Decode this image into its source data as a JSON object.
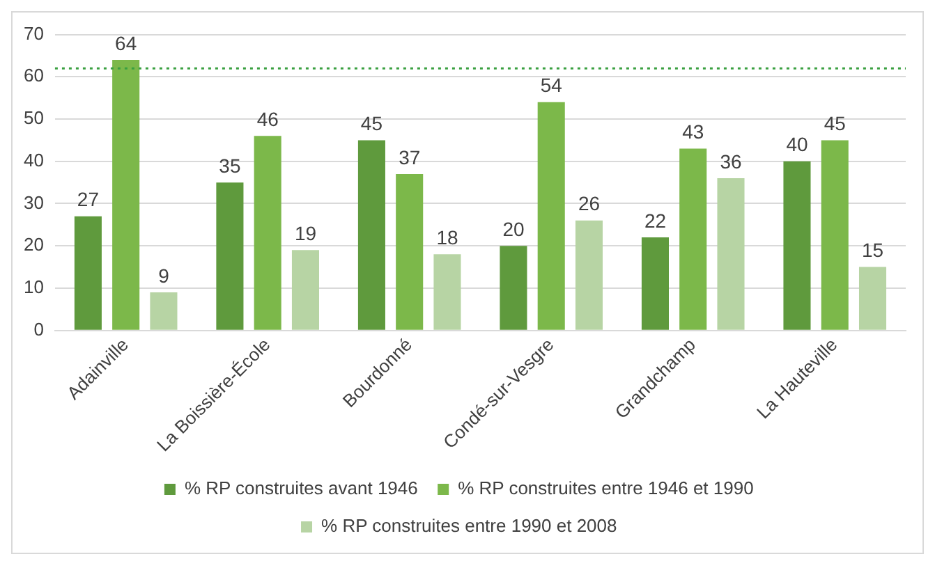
{
  "chart_data": {
    "type": "bar",
    "categories": [
      "Adainville",
      "La Boissière-École",
      "Bourdonné",
      "Condé-sur-Vesgre",
      "Grandchamp",
      "La Hauteville"
    ],
    "series": [
      {
        "name": "% RP construites avant 1946",
        "color": "#5f9a3d",
        "values": [
          27,
          35,
          45,
          20,
          22,
          40
        ]
      },
      {
        "name": "% RP construites entre 1946 et 1990",
        "color": "#7cb84a",
        "values": [
          64,
          46,
          37,
          54,
          43,
          45
        ]
      },
      {
        "name": "% RP construites entre 1990 et 2008",
        "color": "#b7d4a4",
        "values": [
          9,
          19,
          18,
          26,
          36,
          15
        ]
      }
    ],
    "ylim": [
      0,
      70
    ],
    "yticks": [
      0,
      10,
      20,
      30,
      40,
      50,
      60,
      70
    ],
    "grid": "y",
    "legend": "bottom",
    "data_labels": true,
    "ref_lines": [
      {
        "axis": "y",
        "value": 62,
        "color": "#3aa040",
        "line_style": "dotted"
      }
    ]
  }
}
